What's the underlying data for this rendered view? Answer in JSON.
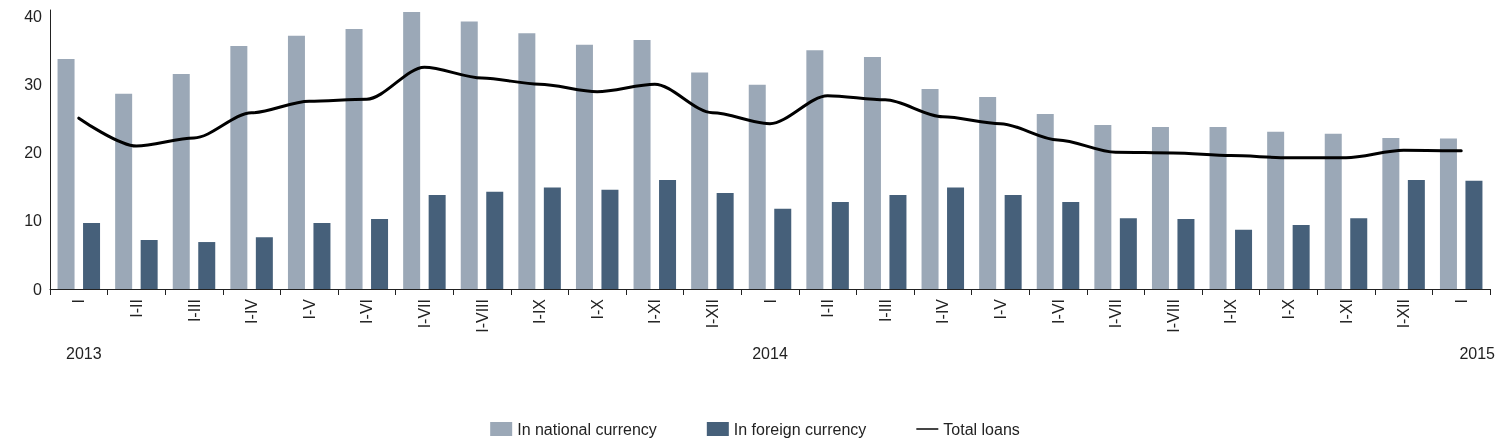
{
  "chart_data": {
    "type": "bar",
    "categories": [
      "I",
      "I-II",
      "I-III",
      "I-IV",
      "I-V",
      "I-VI",
      "I-VII",
      "I-VIII",
      "I-IX",
      "I-X",
      "I-XI",
      "I-XII",
      "I",
      "I-II",
      "I-III",
      "I-IV",
      "I-V",
      "I-VI",
      "I-VII",
      "I-VIII",
      "I-IX",
      "I-X",
      "I-XI",
      "I-XII",
      "I"
    ],
    "series": [
      {
        "name": "In national currency",
        "color": "#9ba8b7",
        "values": [
          33.8,
          28.7,
          31.6,
          35.7,
          37.2,
          38.2,
          40.7,
          39.3,
          37.6,
          35.9,
          36.6,
          31.8,
          30.0,
          35.1,
          34.1,
          29.4,
          28.2,
          25.7,
          24.1,
          23.8,
          23.8,
          23.1,
          22.8,
          22.2,
          22.1
        ]
      },
      {
        "name": "In foreign currency",
        "color": "#46607a",
        "values": [
          9.7,
          7.2,
          6.9,
          7.6,
          9.7,
          10.3,
          13.8,
          14.3,
          14.9,
          14.6,
          16.0,
          14.1,
          11.8,
          12.8,
          13.8,
          14.9,
          13.8,
          12.8,
          10.4,
          10.3,
          8.7,
          9.4,
          10.4,
          16.0,
          15.9
        ]
      },
      {
        "name": "Total loans",
        "type": "line",
        "color": "#000000",
        "values": [
          25.1,
          21.0,
          22.2,
          25.9,
          27.6,
          27.9,
          32.6,
          31.0,
          30.1,
          29.0,
          30.1,
          25.9,
          24.3,
          28.4,
          27.8,
          25.3,
          24.3,
          21.9,
          20.1,
          20.0,
          19.6,
          19.3,
          19.3,
          20.4,
          20.3
        ]
      }
    ],
    "ylim": [
      0,
      41
    ],
    "yticks": [
      0,
      10,
      20,
      30,
      40
    ],
    "grid": false,
    "legend": "bottom",
    "marker": "none",
    "line_style": "solid",
    "annotations": [
      "2013",
      "2014",
      "2015"
    ]
  }
}
